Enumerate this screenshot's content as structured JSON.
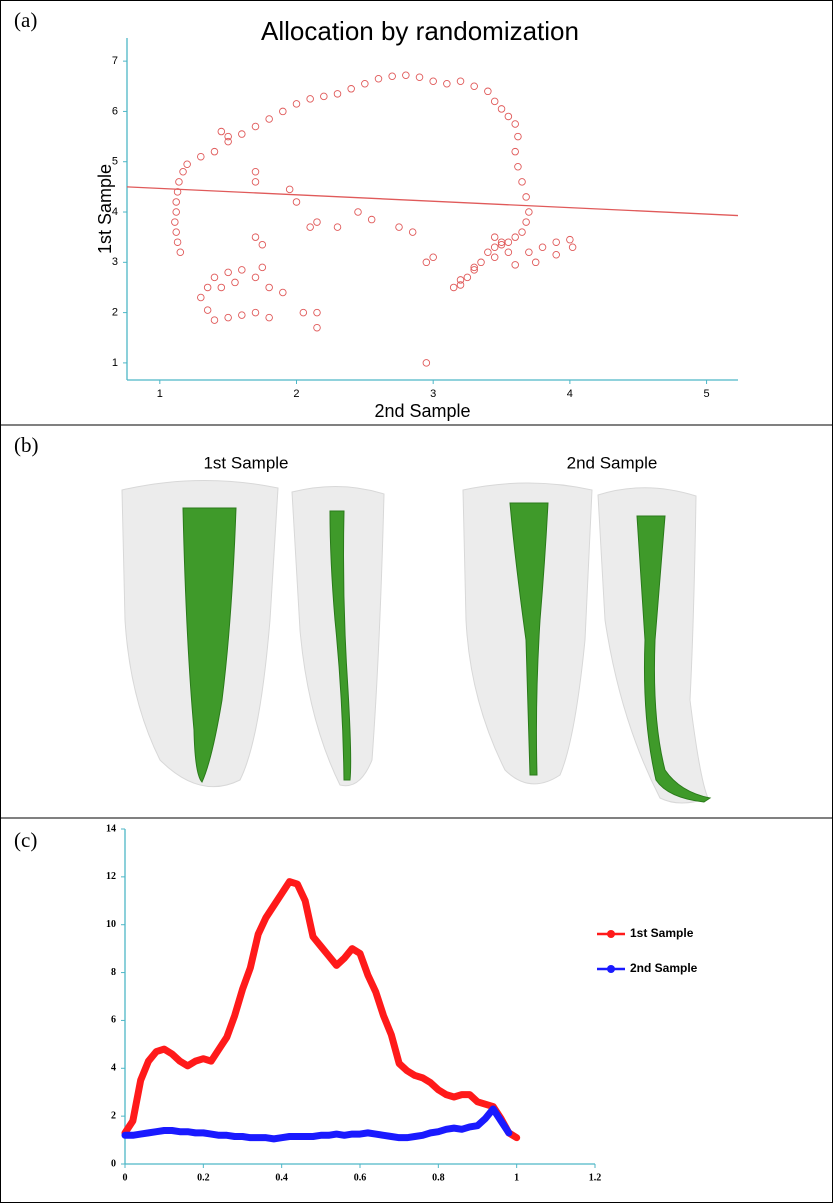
{
  "panel_labels": [
    "(a)",
    "(b)",
    "(c)"
  ],
  "images": {
    "titles": [
      "1st Sample",
      "2nd Sample"
    ]
  },
  "chart_data": [
    {
      "type": "scatter",
      "title": "Allocation by randomization",
      "xlabel": "2nd Sample",
      "ylabel": "1st Sample",
      "color": "#e05a5a",
      "xlim": [
        0.76,
        5.23
      ],
      "ylim": [
        0.66,
        7.46
      ],
      "xticks": [
        1,
        2,
        3,
        4,
        5
      ],
      "yticks": [
        1,
        2,
        3,
        4,
        5,
        6,
        7
      ],
      "x": [
        1.15,
        1.13,
        1.12,
        1.11,
        1.12,
        1.12,
        1.13,
        1.14,
        1.17,
        1.2,
        1.3,
        1.4,
        1.5,
        1.6,
        1.7,
        1.8,
        1.9,
        2.0,
        2.1,
        2.2,
        2.3,
        2.4,
        2.5,
        2.6,
        2.7,
        2.8,
        2.9,
        3.0,
        3.1,
        3.2,
        3.3,
        3.4,
        3.45,
        3.5,
        3.55,
        3.6,
        3.62,
        3.6,
        3.62,
        3.65,
        3.68,
        3.7,
        3.68,
        3.65,
        3.6,
        3.55,
        3.5,
        3.45,
        3.4,
        3.35,
        3.3,
        3.25,
        3.2,
        3.15,
        3.2,
        3.3,
        3.45,
        3.55,
        3.7,
        3.8,
        3.9,
        4.0,
        4.02,
        3.9,
        3.75,
        3.6,
        3.5,
        3.45,
        2.95,
        3.0,
        2.85,
        2.75,
        2.55,
        2.45,
        2.3,
        2.1,
        2.0,
        1.95,
        1.7,
        1.7,
        1.5,
        1.45,
        2.15,
        1.35,
        1.3,
        1.35,
        1.4,
        1.5,
        1.6,
        1.7,
        1.8,
        1.7,
        1.6,
        1.5,
        1.45,
        1.75,
        1.8,
        1.9,
        2.05,
        2.15,
        2.15,
        1.75,
        1.7,
        1.55,
        1.4,
        2.95
      ],
      "values": [
        3.2,
        3.4,
        3.6,
        3.8,
        4.0,
        4.2,
        4.4,
        4.6,
        4.8,
        4.95,
        5.1,
        5.2,
        5.4,
        5.55,
        5.7,
        5.85,
        6.0,
        6.15,
        6.25,
        6.3,
        6.35,
        6.45,
        6.55,
        6.65,
        6.7,
        6.72,
        6.68,
        6.6,
        6.55,
        6.6,
        6.5,
        6.4,
        6.2,
        6.05,
        5.9,
        5.75,
        5.5,
        5.2,
        4.9,
        4.6,
        4.3,
        4.0,
        3.8,
        3.6,
        3.5,
        3.4,
        3.35,
        3.3,
        3.2,
        3.0,
        2.85,
        2.7,
        2.55,
        2.5,
        2.65,
        2.9,
        3.1,
        3.2,
        3.2,
        3.3,
        3.4,
        3.45,
        3.3,
        3.15,
        3.0,
        2.95,
        3.4,
        3.5,
        3.0,
        3.1,
        3.6,
        3.7,
        3.85,
        4.0,
        3.7,
        3.7,
        4.2,
        4.45,
        4.8,
        4.6,
        5.5,
        5.6,
        3.8,
        2.5,
        2.3,
        2.05,
        1.85,
        1.9,
        1.95,
        2.0,
        1.9,
        2.7,
        2.85,
        2.8,
        2.5,
        2.9,
        2.5,
        2.4,
        2.0,
        2.0,
        1.7,
        3.35,
        3.5,
        2.6,
        2.7,
        1.0
      ],
      "trend": {
        "x": [
          0.76,
          5.23
        ],
        "values": [
          4.5,
          3.93
        ]
      }
    },
    {
      "type": "line",
      "legend": "right",
      "xlim": [
        0,
        1.2
      ],
      "ylim": [
        0,
        14
      ],
      "xticks": [
        0,
        0.2,
        0.4,
        0.6,
        0.8,
        1,
        1.2
      ],
      "yticks": [
        0,
        2,
        4,
        6,
        8,
        10,
        12,
        14
      ],
      "x": [
        0,
        0.02,
        0.04,
        0.06,
        0.08,
        0.1,
        0.12,
        0.14,
        0.16,
        0.18,
        0.2,
        0.22,
        0.24,
        0.26,
        0.28,
        0.3,
        0.32,
        0.34,
        0.36,
        0.38,
        0.4,
        0.42,
        0.44,
        0.46,
        0.48,
        0.5,
        0.52,
        0.54,
        0.56,
        0.58,
        0.6,
        0.62,
        0.64,
        0.66,
        0.68,
        0.7,
        0.72,
        0.74,
        0.76,
        0.78,
        0.8,
        0.82,
        0.84,
        0.86,
        0.88,
        0.9,
        0.92,
        0.94,
        0.96,
        0.98,
        1.0
      ],
      "series": [
        {
          "name": "1st Sample",
          "color": "#ff1a1a",
          "values": [
            1.3,
            1.8,
            3.5,
            4.3,
            4.7,
            4.8,
            4.6,
            4.3,
            4.1,
            4.3,
            4.4,
            4.3,
            4.8,
            5.3,
            6.2,
            7.3,
            8.2,
            9.6,
            10.3,
            10.8,
            11.3,
            11.8,
            11.7,
            11.0,
            9.5,
            9.1,
            8.7,
            8.3,
            8.6,
            9.0,
            8.8,
            7.9,
            7.2,
            6.2,
            5.4,
            4.2,
            3.9,
            3.7,
            3.6,
            3.4,
            3.1,
            2.9,
            2.8,
            2.9,
            2.9,
            2.6,
            2.5,
            2.4,
            1.9,
            1.3,
            1.1
          ]
        },
        {
          "name": "2nd Sample",
          "color": "#1a1aff",
          "values": [
            1.2,
            1.2,
            1.25,
            1.3,
            1.35,
            1.4,
            1.4,
            1.35,
            1.35,
            1.3,
            1.3,
            1.25,
            1.2,
            1.2,
            1.15,
            1.15,
            1.1,
            1.1,
            1.1,
            1.05,
            1.1,
            1.15,
            1.15,
            1.15,
            1.15,
            1.2,
            1.2,
            1.25,
            1.2,
            1.25,
            1.25,
            1.3,
            1.25,
            1.2,
            1.15,
            1.1,
            1.1,
            1.15,
            1.2,
            1.3,
            1.35,
            1.45,
            1.5,
            1.45,
            1.55,
            1.6,
            1.9,
            2.3,
            1.8,
            1.3,
            null
          ]
        }
      ]
    }
  ]
}
